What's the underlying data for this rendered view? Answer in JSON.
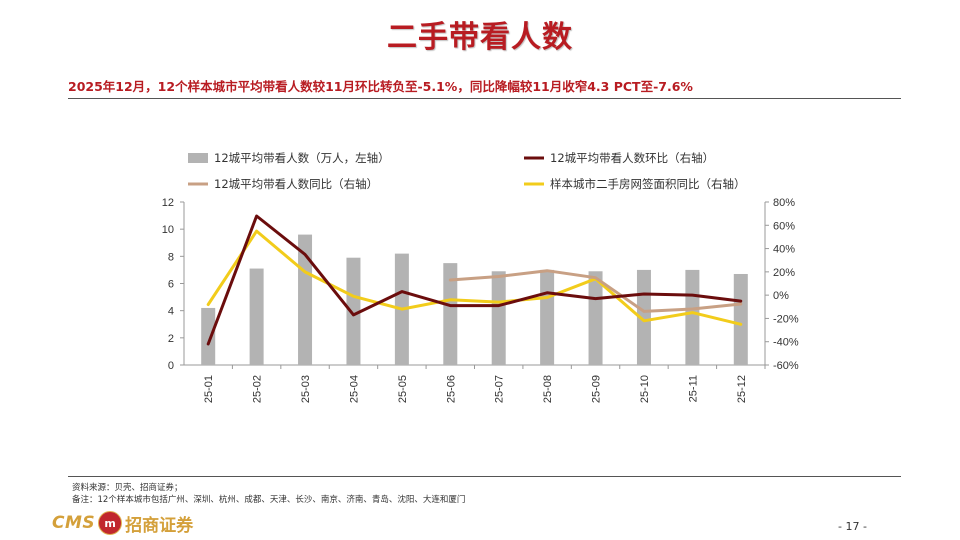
{
  "title": "二手带看人数",
  "subtitle": "2025年12月，12个样本城市平均带看人数较11月环比转负至-5.1%，同比降幅较11月收窄4.3 PCT至-7.6%",
  "source_line": "资料来源：贝壳、招商证券；",
  "note_line": "备注：12个样本城市包括广州、深圳、杭州、成都、天津、长沙、南京、济南、青岛、沈阳、大连和厦门",
  "logo": {
    "cms": "CMS",
    "badge": "m",
    "name": "招商证券"
  },
  "page_number": "- 17 -",
  "colors": {
    "title": "#b81c22",
    "bar": "#b3b3b3",
    "mom": "#6b0d0d",
    "yoy": "#c8a084",
    "area": "#f2cc1b"
  },
  "chart_data": {
    "type": "bar+line",
    "categories": [
      "25-01",
      "25-02",
      "25-03",
      "25-04",
      "25-05",
      "25-06",
      "25-07",
      "25-08",
      "25-09",
      "25-10",
      "25-11",
      "25-12"
    ],
    "left_axis": {
      "min": 0,
      "max": 12,
      "ticks": [
        "0",
        "2",
        "4",
        "6",
        "8",
        "10",
        "12"
      ]
    },
    "right_axis": {
      "min": -60,
      "max": 80,
      "ticks": [
        "-60%",
        "-40%",
        "-20%",
        "0%",
        "20%",
        "40%",
        "60%",
        "80%"
      ]
    },
    "series": [
      {
        "name": "12城平均带看人数（万人，左轴）",
        "type": "bar",
        "axis": "left",
        "values": [
          4.2,
          7.1,
          9.6,
          7.9,
          8.2,
          7.5,
          6.9,
          7.0,
          6.9,
          7.0,
          7.0,
          6.7
        ]
      },
      {
        "name": "12城平均带看人数环比（右轴）",
        "type": "line",
        "axis": "right",
        "values": [
          -42,
          68,
          35,
          -17,
          3,
          -9,
          -9,
          2,
          -3,
          1,
          0,
          -5.1
        ]
      },
      {
        "name": "12城平均带看人数同比（右轴）",
        "type": "line",
        "axis": "right",
        "values": [
          null,
          null,
          null,
          null,
          null,
          13,
          16,
          21,
          15,
          -14,
          -11.9,
          -7.6
        ]
      },
      {
        "name": "样本城市二手房网签面积同比（右轴）",
        "type": "line",
        "axis": "right",
        "values": [
          -8,
          55,
          20,
          -1,
          -12,
          -4,
          -6,
          -2,
          14,
          -22,
          -15,
          -25
        ]
      }
    ]
  }
}
